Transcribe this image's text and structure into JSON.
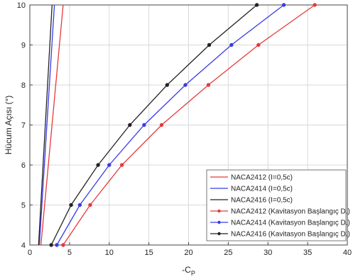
{
  "chart_data": {
    "type": "line",
    "title": "",
    "xlabel": "-C",
    "xlabel_sub": "P",
    "ylabel": "Hücum Açısı (°)",
    "xlim": [
      0,
      40
    ],
    "ylim": [
      4,
      10
    ],
    "x_ticks": [
      "0",
      "5",
      "10",
      "15",
      "20",
      "25",
      "30",
      "35",
      "40"
    ],
    "y_ticks": [
      "4",
      "5",
      "6",
      "7",
      "8",
      "9",
      "10"
    ],
    "grid": true,
    "legend_position": "bottom-right",
    "series": [
      {
        "name": "NACA2412 (I=0,5c)",
        "color": "#e8383b",
        "marker": false,
        "x": [
          1.4,
          4.2
        ],
        "y": [
          4,
          10
        ]
      },
      {
        "name": "NACA2414 (I=0,5c)",
        "color": "#3a3ae8",
        "marker": false,
        "x": [
          1.2,
          3.1
        ],
        "y": [
          4,
          10
        ]
      },
      {
        "name": "NACA2416 (I=0,5c)",
        "color": "#222222",
        "marker": false,
        "x": [
          1.1,
          2.8
        ],
        "y": [
          4,
          10
        ]
      },
      {
        "name": "NACA2412 (Kavitasyon Başlangıç D.)",
        "color": "#e8383b",
        "marker": true,
        "x": [
          4.2,
          7.6,
          11.6,
          16.6,
          22.5,
          28.8,
          35.9
        ],
        "y": [
          4,
          5,
          6,
          7,
          8,
          9,
          10
        ]
      },
      {
        "name": "NACA2414 (Kavitasyon Başlangıç D.)",
        "color": "#3a3ae8",
        "marker": true,
        "x": [
          3.4,
          6.3,
          10.0,
          14.4,
          19.6,
          25.4,
          32.0
        ],
        "y": [
          4,
          5,
          6,
          7,
          8,
          9,
          10
        ]
      },
      {
        "name": "NACA2416 (Kavitasyon Başlangıç D.)",
        "color": "#222222",
        "marker": true,
        "x": [
          2.7,
          5.2,
          8.6,
          12.6,
          17.3,
          22.6,
          28.6
        ],
        "y": [
          4,
          5,
          6,
          7,
          8,
          9,
          10
        ]
      }
    ]
  }
}
